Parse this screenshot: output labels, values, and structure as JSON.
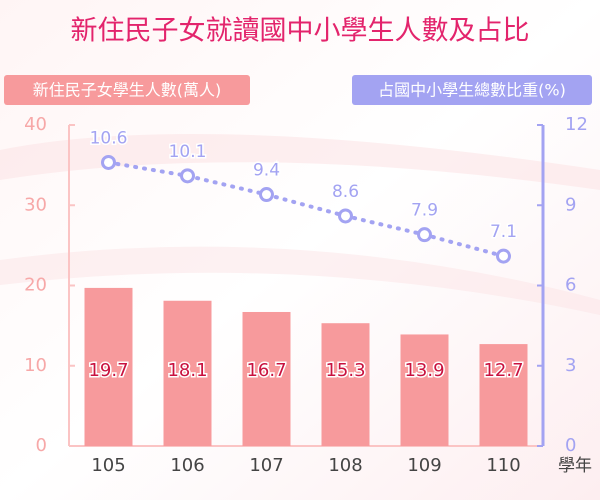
{
  "chart_data": {
    "type": "bar",
    "title": "新住民子女就讀國中小學生人數及占比",
    "categories": [
      "105",
      "106",
      "107",
      "108",
      "109",
      "110"
    ],
    "x_label": "學年",
    "series": [
      {
        "name": "新住民子女學生人數(萬人)",
        "type": "bar",
        "color": "#f79a9c",
        "values": [
          19.7,
          18.1,
          16.7,
          15.3,
          13.9,
          12.7
        ]
      },
      {
        "name": "占國中小學生總數比重(%)",
        "type": "line",
        "axis": "y2",
        "color": "#a3a3f2",
        "values": [
          10.6,
          10.1,
          9.4,
          8.6,
          7.9,
          7.1
        ]
      }
    ],
    "ylim": [
      0,
      40
    ],
    "yticks": [
      0,
      10,
      20,
      30,
      40
    ],
    "y2lim": [
      0,
      12
    ],
    "y2ticks": [
      0,
      3,
      6,
      9,
      12
    ]
  }
}
